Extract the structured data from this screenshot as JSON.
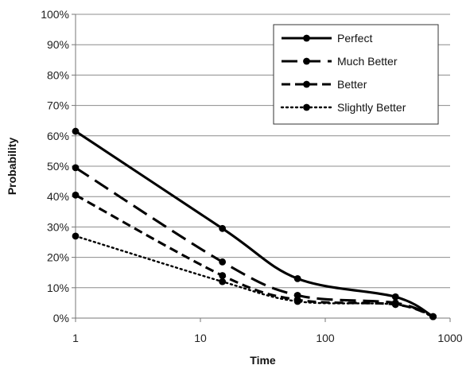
{
  "chart_data": {
    "type": "line",
    "xlabel": "Time",
    "ylabel": "Probability",
    "x_scale": "log",
    "xlim": [
      1,
      1000
    ],
    "ylim": [
      0,
      100
    ],
    "x_ticks": [
      1,
      10,
      100,
      1000
    ],
    "x_tick_labels": [
      "1",
      "10",
      "100",
      "1000"
    ],
    "y_ticks": [
      0,
      10,
      20,
      30,
      40,
      50,
      60,
      70,
      80,
      90,
      100
    ],
    "y_tick_labels": [
      "0%",
      "10%",
      "20%",
      "30%",
      "40%",
      "50%",
      "60%",
      "70%",
      "80%",
      "90%",
      "100%"
    ],
    "grid": "horizontal",
    "legend_position": "top-right",
    "series": [
      {
        "name": "Perfect",
        "style": "solid",
        "x": [
          1,
          15,
          60,
          365,
          730
        ],
        "values": [
          61.5,
          29.5,
          13,
          7,
          0.5
        ]
      },
      {
        "name": "Much Better",
        "style": "long-dash",
        "x": [
          1,
          15,
          60,
          365,
          730
        ],
        "values": [
          49.5,
          18.5,
          7.5,
          5,
          0.5
        ]
      },
      {
        "name": "Better",
        "style": "dash",
        "x": [
          1,
          15,
          60,
          365,
          730
        ],
        "values": [
          40.5,
          14,
          6,
          4.5,
          0.5
        ]
      },
      {
        "name": "Slightly Better",
        "style": "dotted",
        "x": [
          1,
          15,
          60,
          365,
          730
        ],
        "values": [
          27,
          12,
          5.5,
          4.5,
          0.5
        ]
      }
    ]
  }
}
